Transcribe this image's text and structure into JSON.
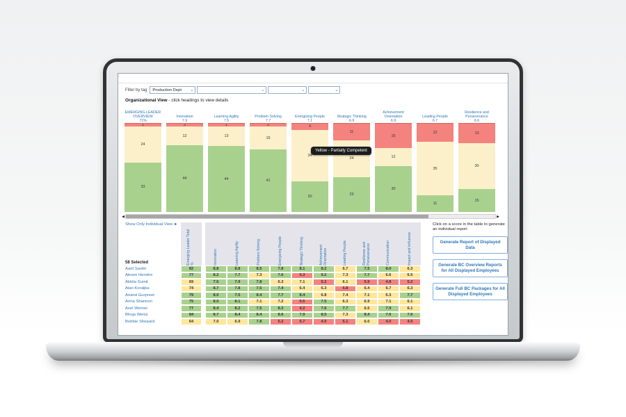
{
  "icons": {
    "chevron_down": "⌄",
    "arrow_left": "◀",
    "arrow_right": "▶"
  },
  "filter_bar": {
    "label": "Filter by tag",
    "dropdowns": [
      {
        "value": "Production Dept"
      },
      {
        "value": ""
      },
      {
        "value": ""
      },
      {
        "value": ""
      }
    ]
  },
  "org_view": {
    "title": "Organizational View",
    "subtitle": "- click headings to view details"
  },
  "tooltip": "Yellow - Partially Competent",
  "chart_data": {
    "type": "bar",
    "stacked": true,
    "total_per_column": 58,
    "colors": {
      "red": "#F4827E",
      "yellow": "#FBF0C9",
      "green": "#A9D18E"
    },
    "columns": [
      {
        "name": "EMERGING LEADER OVERVIEW",
        "score": "71%",
        "red": 1,
        "yellow": 24,
        "green": 33
      },
      {
        "name": "Innovation",
        "score": "7.9",
        "red": 2,
        "yellow": 12,
        "green": 44
      },
      {
        "name": "Learning Agility",
        "score": "7.5",
        "red": 1,
        "yellow": 13,
        "green": 44
      },
      {
        "name": "Problem Solving",
        "score": "7.7",
        "red": 2,
        "yellow": 15,
        "green": 41
      },
      {
        "name": "Energizing People",
        "score": "7.1",
        "red": 4,
        "yellow": 34,
        "green": 20
      },
      {
        "name": "Strategic Thinking",
        "score": "6.9",
        "red": 11,
        "yellow": 24,
        "green": 23
      },
      {
        "name": "Achievement Orientation",
        "score": "6.9",
        "red": 16,
        "yellow": 12,
        "green": 30
      },
      {
        "name": "Leading People",
        "score": "6.7",
        "red": 12,
        "yellow": 35,
        "green": 11
      },
      {
        "name": "Resilience and Perseverance",
        "score": "6.6",
        "red": 13,
        "yellow": 30,
        "green": 15
      }
    ]
  },
  "scrollbar": {
    "thumb_percent": 82
  },
  "table": {
    "link": "Show Only Individual View ►",
    "selected_label": "58 Selected",
    "columns": [
      "Emerging Leader Total %",
      "Innovation",
      "Learning Agility",
      "Problem Solving",
      "Energizing People",
      "Strategic Thinking",
      "Achievement Orientation",
      "Leading People",
      "Resilience and Perseverance",
      "Communication",
      "Impact and Influence"
    ],
    "rows": [
      {
        "name": "Aarti Savitri",
        "cells": [
          {
            "v": "82",
            "c": "g"
          },
          {
            "v": "8.8",
            "c": "g"
          },
          {
            "v": "8.8",
            "c": "g"
          },
          {
            "v": "8.5",
            "c": "g"
          },
          {
            "v": "7.8",
            "c": "g"
          },
          {
            "v": "8.1",
            "c": "g"
          },
          {
            "v": "8.2",
            "c": "g"
          },
          {
            "v": "6.7",
            "c": "y"
          },
          {
            "v": "7.5",
            "c": "g"
          },
          {
            "v": "8.0",
            "c": "g"
          },
          {
            "v": "6.3",
            "c": "y"
          }
        ]
      },
      {
        "name": "Abram Hendrix",
        "cells": [
          {
            "v": "77",
            "c": "g"
          },
          {
            "v": "8.2",
            "c": "g"
          },
          {
            "v": "7.7",
            "c": "g"
          },
          {
            "v": "7.3",
            "c": "y"
          },
          {
            "v": "7.6",
            "c": "g"
          },
          {
            "v": "5.3",
            "c": "r"
          },
          {
            "v": "9.2",
            "c": "g"
          },
          {
            "v": "7.3",
            "c": "y"
          },
          {
            "v": "7.7",
            "c": "g"
          },
          {
            "v": "6.6",
            "c": "y"
          },
          {
            "v": "6.5",
            "c": "y"
          }
        ]
      },
      {
        "name": "Akhila Sumit",
        "cells": [
          {
            "v": "69",
            "c": "y"
          },
          {
            "v": "7.6",
            "c": "g"
          },
          {
            "v": "7.9",
            "c": "g"
          },
          {
            "v": "7.8",
            "c": "g"
          },
          {
            "v": "6.3",
            "c": "y"
          },
          {
            "v": "7.1",
            "c": "y"
          },
          {
            "v": "5.2",
            "c": "r"
          },
          {
            "v": "6.1",
            "c": "y"
          },
          {
            "v": "5.9",
            "c": "r"
          },
          {
            "v": "4.8",
            "c": "r"
          },
          {
            "v": "5.2",
            "c": "r"
          }
        ]
      },
      {
        "name": "Alan Koraljka",
        "cells": [
          {
            "v": "74",
            "c": "y"
          },
          {
            "v": "8.7",
            "c": "g"
          },
          {
            "v": "7.8",
            "c": "g"
          },
          {
            "v": "7.5",
            "c": "g"
          },
          {
            "v": "7.4",
            "c": "g"
          },
          {
            "v": "6.4",
            "c": "y"
          },
          {
            "v": "6.3",
            "c": "y"
          },
          {
            "v": "5.8",
            "c": "r"
          },
          {
            "v": "6.4",
            "c": "y"
          },
          {
            "v": "6.7",
            "c": "y"
          },
          {
            "v": "6.3",
            "c": "y"
          }
        ]
      },
      {
        "name": "Anand Gurpreet",
        "cells": [
          {
            "v": "79",
            "c": "g"
          },
          {
            "v": "8.0",
            "c": "g"
          },
          {
            "v": "7.5",
            "c": "g"
          },
          {
            "v": "8.4",
            "c": "g"
          },
          {
            "v": "7.7",
            "c": "g"
          },
          {
            "v": "8.4",
            "c": "g"
          },
          {
            "v": "6.8",
            "c": "y"
          },
          {
            "v": "7.4",
            "c": "y"
          },
          {
            "v": "7.1",
            "c": "y"
          },
          {
            "v": "6.3",
            "c": "y"
          },
          {
            "v": "7.7",
            "c": "g"
          }
        ]
      },
      {
        "name": "Anna Shannon",
        "cells": [
          {
            "v": "75",
            "c": "g"
          },
          {
            "v": "8.0",
            "c": "g"
          },
          {
            "v": "8.1",
            "c": "g"
          },
          {
            "v": "7.1",
            "c": "y"
          },
          {
            "v": "7.2",
            "c": "y"
          },
          {
            "v": "5.5",
            "c": "r"
          },
          {
            "v": "7.5",
            "c": "g"
          },
          {
            "v": "6.3",
            "c": "y"
          },
          {
            "v": "6.9",
            "c": "y"
          },
          {
            "v": "7.1",
            "c": "y"
          },
          {
            "v": "6.1",
            "c": "y"
          }
        ]
      },
      {
        "name": "Axel Werner",
        "cells": [
          {
            "v": "77",
            "c": "g"
          },
          {
            "v": "8.4",
            "c": "g"
          },
          {
            "v": "8.2",
            "c": "g"
          },
          {
            "v": "7.5",
            "c": "g"
          },
          {
            "v": "8.3",
            "c": "g"
          },
          {
            "v": "4.2",
            "c": "r"
          },
          {
            "v": "7.6",
            "c": "g"
          },
          {
            "v": "7.7",
            "c": "g"
          },
          {
            "v": "6.5",
            "c": "y"
          },
          {
            "v": "7.9",
            "c": "g"
          },
          {
            "v": "6.1",
            "c": "y"
          }
        ]
      },
      {
        "name": "Bhoja Weiss",
        "cells": [
          {
            "v": "84",
            "c": "g"
          },
          {
            "v": "8.7",
            "c": "g"
          },
          {
            "v": "8.4",
            "c": "g"
          },
          {
            "v": "8.4",
            "c": "g"
          },
          {
            "v": "8.6",
            "c": "g"
          },
          {
            "v": "7.9",
            "c": "g"
          },
          {
            "v": "8.5",
            "c": "g"
          },
          {
            "v": "7.3",
            "c": "y"
          },
          {
            "v": "8.4",
            "c": "g"
          },
          {
            "v": "7.6",
            "c": "g"
          },
          {
            "v": "7.6",
            "c": "g"
          }
        ]
      },
      {
        "name": "Bobbie Shepard",
        "cells": [
          {
            "v": "64",
            "c": "y"
          },
          {
            "v": "7.0",
            "c": "y"
          },
          {
            "v": "6.9",
            "c": "y"
          },
          {
            "v": "7.8",
            "c": "g"
          },
          {
            "v": "5.2",
            "c": "r"
          },
          {
            "v": "5.7",
            "c": "r"
          },
          {
            "v": "4.0",
            "c": "r"
          },
          {
            "v": "5.1",
            "c": "r"
          },
          {
            "v": "6.0",
            "c": "y"
          },
          {
            "v": "4.0",
            "c": "r"
          },
          {
            "v": "4.5",
            "c": "r"
          }
        ]
      }
    ]
  },
  "right_panel": {
    "caption": "Click on a score in the table to generate an individual report",
    "buttons": [
      "Generate Report of Displayed Data",
      "Generate BC Overview Reports for All Displayed Employees",
      "Generate Full BC Packages for All Displayed Employees"
    ]
  }
}
